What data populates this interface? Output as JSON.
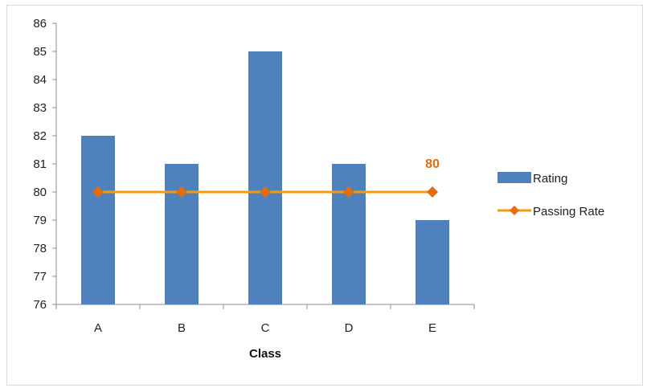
{
  "chart_data": {
    "type": "bar",
    "categories": [
      "A",
      "B",
      "C",
      "D",
      "E"
    ],
    "series": [
      {
        "name": "Rating",
        "type": "bar",
        "values": [
          82,
          81,
          85,
          81,
          79
        ],
        "color": "#4f81bd"
      },
      {
        "name": "Passing Rate",
        "type": "line",
        "values": [
          80,
          80,
          80,
          80,
          80
        ],
        "color": "#f59a0a",
        "marker": "diamond",
        "marker_color": "#e46c0a"
      }
    ],
    "data_labels": [
      {
        "series": "Passing Rate",
        "category": "E",
        "text": "80",
        "color": "#e46c0a"
      }
    ],
    "xlabel": "Class",
    "ylabel": "",
    "ylim": [
      76,
      86
    ],
    "yticks": [
      "76",
      "77",
      "78",
      "79",
      "80",
      "81",
      "82",
      "83",
      "84",
      "85",
      "86"
    ],
    "grid": false,
    "legend_position": "right"
  }
}
